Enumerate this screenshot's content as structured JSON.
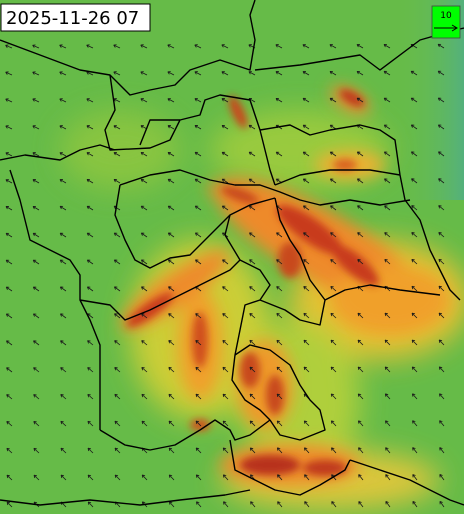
{
  "timestamp": "2025-11-26 07",
  "legend": {
    "label": "10"
  }
}
